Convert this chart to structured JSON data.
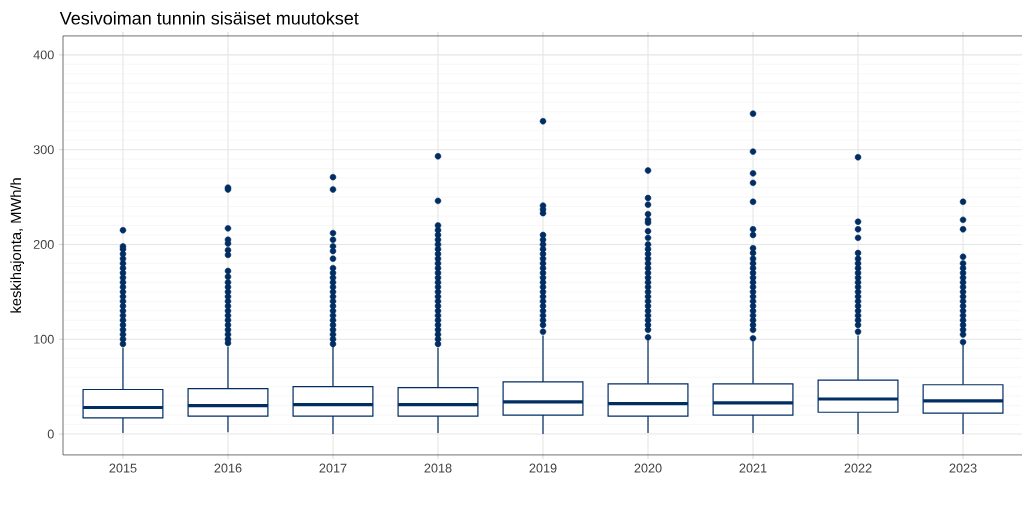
{
  "chart_data": {
    "type": "box",
    "title": "Vesivoiman tunnin sisäiset muutokset",
    "ylabel": "keskihajonta, MWh/h",
    "categories": [
      "2015",
      "2016",
      "2017",
      "2018",
      "2019",
      "2020",
      "2021",
      "2022",
      "2023"
    ],
    "color": "#002d62",
    "ylim": [
      -22,
      420
    ],
    "yticks": [
      0,
      100,
      200,
      300,
      400
    ],
    "grid": true,
    "boxes": [
      {
        "low": 1,
        "q1": 17,
        "median": 28,
        "q3": 47,
        "high": 91,
        "outliers": [
          95,
          100,
          105,
          110,
          115,
          120,
          125,
          130,
          135,
          140,
          145,
          150,
          155,
          160,
          165,
          170,
          175,
          180,
          185,
          190,
          195,
          198,
          215
        ]
      },
      {
        "low": 2,
        "q1": 19,
        "median": 30,
        "q3": 48,
        "high": 92,
        "outliers": [
          96,
          100,
          105,
          110,
          115,
          120,
          125,
          130,
          135,
          140,
          145,
          150,
          155,
          160,
          166,
          172,
          189,
          194,
          201,
          205,
          217,
          258,
          260
        ]
      },
      {
        "low": 0,
        "q1": 19,
        "median": 31,
        "q3": 50,
        "high": 93,
        "outliers": [
          95,
          100,
          105,
          110,
          115,
          120,
          125,
          130,
          135,
          140,
          145,
          150,
          155,
          160,
          165,
          170,
          175,
          185,
          193,
          198,
          205,
          212,
          258,
          271
        ]
      },
      {
        "low": 1,
        "q1": 19,
        "median": 31,
        "q3": 49,
        "high": 91,
        "outliers": [
          95,
          100,
          105,
          110,
          115,
          120,
          125,
          130,
          135,
          140,
          145,
          150,
          155,
          160,
          165,
          170,
          175,
          180,
          185,
          190,
          195,
          200,
          205,
          210,
          215,
          220,
          246,
          293
        ]
      },
      {
        "low": 0,
        "q1": 20,
        "median": 34,
        "q3": 55,
        "high": 104,
        "outliers": [
          108,
          115,
          120,
          125,
          130,
          135,
          140,
          145,
          150,
          155,
          160,
          165,
          170,
          175,
          180,
          185,
          190,
          195,
          200,
          205,
          210,
          233,
          237,
          241,
          330
        ]
      },
      {
        "low": 1,
        "q1": 19,
        "median": 32,
        "q3": 53,
        "high": 99,
        "outliers": [
          102,
          110,
          115,
          120,
          125,
          130,
          135,
          140,
          145,
          150,
          155,
          160,
          165,
          170,
          175,
          180,
          185,
          190,
          195,
          200,
          207,
          214,
          223,
          226,
          232,
          242,
          249,
          278
        ]
      },
      {
        "low": 1,
        "q1": 20,
        "median": 33,
        "q3": 53,
        "high": 98,
        "outliers": [
          101,
          110,
          115,
          120,
          125,
          130,
          135,
          140,
          145,
          150,
          155,
          160,
          165,
          170,
          175,
          180,
          185,
          191,
          196,
          210,
          216,
          245,
          265,
          275,
          298,
          338
        ]
      },
      {
        "low": 0,
        "q1": 23,
        "median": 37,
        "q3": 57,
        "high": 104,
        "outliers": [
          108,
          115,
          120,
          125,
          130,
          135,
          140,
          145,
          150,
          155,
          160,
          165,
          170,
          175,
          180,
          185,
          191,
          207,
          216,
          224,
          292
        ]
      },
      {
        "low": 0,
        "q1": 22,
        "median": 35,
        "q3": 52,
        "high": 94,
        "outliers": [
          97,
          105,
          110,
          115,
          120,
          125,
          130,
          135,
          140,
          145,
          150,
          155,
          160,
          165,
          170,
          175,
          180,
          187,
          216,
          226,
          245
        ]
      }
    ]
  }
}
